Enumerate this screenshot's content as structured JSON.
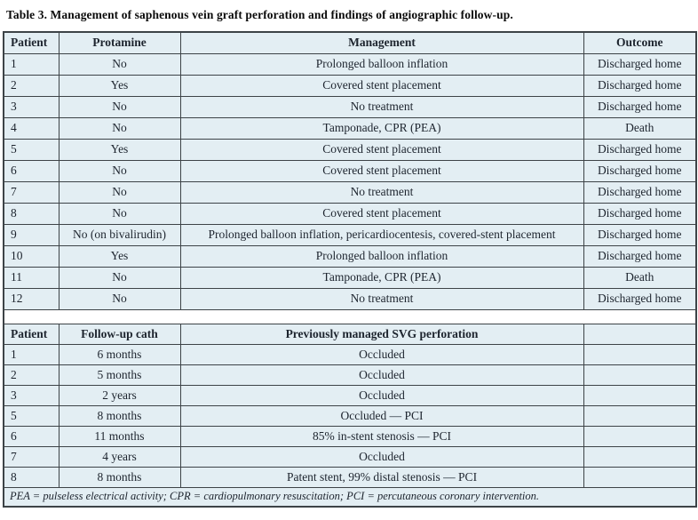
{
  "title": "Table 3. Management of saphenous vein graft perforation and findings of angiographic follow-up.",
  "table1": {
    "headers": [
      "Patient",
      "Protamine",
      "Management",
      "Outcome"
    ],
    "rows": [
      [
        "1",
        "No",
        "Prolonged balloon inflation",
        "Discharged home"
      ],
      [
        "2",
        "Yes",
        "Covered stent placement",
        "Discharged home"
      ],
      [
        "3",
        "No",
        "No treatment",
        "Discharged home"
      ],
      [
        "4",
        "No",
        "Tamponade, CPR (PEA)",
        "Death"
      ],
      [
        "5",
        "Yes",
        "Covered stent placement",
        "Discharged home"
      ],
      [
        "6",
        "No",
        "Covered stent placement",
        "Discharged home"
      ],
      [
        "7",
        "No",
        "No treatment",
        "Discharged home"
      ],
      [
        "8",
        "No",
        "Covered stent placement",
        "Discharged home"
      ],
      [
        "9",
        "No (on bivalirudin)",
        "Prolonged balloon inflation, pericardiocentesis, covered-stent placement",
        "Discharged home"
      ],
      [
        "10",
        "Yes",
        "Prolonged balloon inflation",
        "Discharged home"
      ],
      [
        "11",
        "No",
        "Tamponade, CPR (PEA)",
        "Death"
      ],
      [
        "12",
        "No",
        "No treatment",
        "Discharged home"
      ]
    ]
  },
  "table2": {
    "headers": [
      "Patient",
      "Follow-up cath",
      "Previously managed SVG perforation",
      ""
    ],
    "rows": [
      [
        "1",
        "6 months",
        "Occluded",
        ""
      ],
      [
        "2",
        "5 months",
        "Occluded",
        ""
      ],
      [
        "3",
        "2 years",
        "Occluded",
        ""
      ],
      [
        "5",
        "8 months",
        "Occluded — PCI",
        ""
      ],
      [
        "6",
        "11 months",
        "85% in-stent stenosis — PCI",
        ""
      ],
      [
        "7",
        "4 years",
        "Occluded",
        ""
      ],
      [
        "8",
        "8 months",
        "Patent stent, 99% distal stenosis — PCI",
        ""
      ]
    ]
  },
  "footnote": "PEA = pulseless electrical activity; CPR = cardiopulmonary resuscitation; PCI = percutaneous coronary intervention.",
  "colors": {
    "cell_bg": "#e3eef3",
    "border": "#3d4347",
    "text": "#1d242e",
    "page_bg": "#ffffff"
  }
}
